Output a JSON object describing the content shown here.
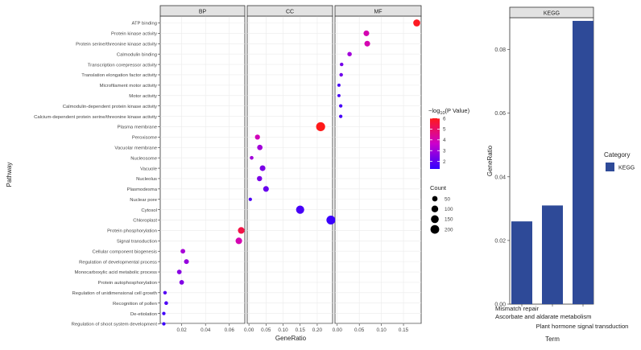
{
  "left_chart": {
    "y_label": "Pathway",
    "x_label": "GeneRatio",
    "colorbar_title_prefix": "−log",
    "colorbar_title_sub": "10",
    "colorbar_title_suffix": "(P Value)",
    "size_legend_title": "Count"
  },
  "right_chart": {
    "y_label": "GeneRatio",
    "x_label": "Term",
    "strip": "KEGG",
    "legend_title": "Category",
    "legend_item": "KEGG"
  },
  "chart_data": [
    {
      "type": "scatter",
      "xlabel": "GeneRatio",
      "ylabel": "Pathway",
      "facets": [
        "BP",
        "CC",
        "MF"
      ],
      "pathways": [
        "ATP binding",
        "Protein kinase activity",
        "Protein serine/threonine kinase activity",
        "Calmodulin binding",
        "Transcription corepressor activity",
        "Translation elongation factor activity",
        "Microfilament motor activity",
        "Motor activity",
        "Calmodulin-dependent protein kinase activity",
        "Calcium-dependent protein serine/threonine kinase activity",
        "Plasma membrane",
        "Peroxisome",
        "Vacuolar membrane",
        "Nucleosome",
        "Vacuole",
        "Nucleolus",
        "Plasmodesma",
        "Nuclear pore",
        "Cytosol",
        "Chloroplast",
        "Protein phosphorylation",
        "Signal transduction",
        "Cellular component biogenesis",
        "Regulation of developmental process",
        "Monocarboxylic acid metabolic process",
        "Protein autophosphorylation",
        "Regulation of unidimensional cell growth",
        "Recognition of pollen",
        "De-etiolation",
        "Regulation of shoot system development"
      ],
      "panels": {
        "BP": {
          "xlim": [
            0.002,
            0.073
          ],
          "ticks": [
            0.02,
            0.04,
            0.06
          ],
          "tick_labels": [
            "0.02",
            "0.04",
            "0.06"
          ]
        },
        "CC": {
          "xlim": [
            -0.005,
            0.245
          ],
          "ticks": [
            0.0,
            0.05,
            0.1,
            0.15,
            0.2
          ],
          "tick_labels": [
            "0.00",
            "0.05",
            "0.10",
            "0.15",
            "0.20"
          ]
        },
        "MF": {
          "xlim": [
            -0.005,
            0.19
          ],
          "ticks": [
            0.0,
            0.05,
            0.1,
            0.15
          ],
          "tick_labels": [
            "0.00",
            "0.05",
            "0.10",
            "0.15"
          ]
        }
      },
      "points": [
        {
          "facet": "MF",
          "pathway": "ATP binding",
          "x": 0.18,
          "count": 110,
          "neg_log10_p": 5.9
        },
        {
          "facet": "MF",
          "pathway": "Protein kinase activity",
          "x": 0.066,
          "count": 60,
          "neg_log10_p": 4.0
        },
        {
          "facet": "MF",
          "pathway": "Protein serine/threonine kinase activity",
          "x": 0.068,
          "count": 60,
          "neg_log10_p": 4.0
        },
        {
          "facet": "MF",
          "pathway": "Calmodulin binding",
          "x": 0.028,
          "count": 25,
          "neg_log10_p": 3.0
        },
        {
          "facet": "MF",
          "pathway": "Transcription corepressor activity",
          "x": 0.01,
          "count": 10,
          "neg_log10_p": 2.3
        },
        {
          "facet": "MF",
          "pathway": "Translation elongation factor activity",
          "x": 0.009,
          "count": 10,
          "neg_log10_p": 2.2
        },
        {
          "facet": "MF",
          "pathway": "Microfilament motor activity",
          "x": 0.004,
          "count": 5,
          "neg_log10_p": 1.6
        },
        {
          "facet": "MF",
          "pathway": "Motor activity",
          "x": 0.004,
          "count": 5,
          "neg_log10_p": 1.6
        },
        {
          "facet": "MF",
          "pathway": "Calmodulin-dependent protein kinase activity",
          "x": 0.008,
          "count": 8,
          "neg_log10_p": 1.6
        },
        {
          "facet": "MF",
          "pathway": "Calcium-dependent protein serine/threonine kinase activity",
          "x": 0.008,
          "count": 8,
          "neg_log10_p": 1.6
        },
        {
          "facet": "CC",
          "pathway": "Plasma membrane",
          "x": 0.21,
          "count": 220,
          "neg_log10_p": 6.0
        },
        {
          "facet": "CC",
          "pathway": "Peroxisome",
          "x": 0.025,
          "count": 40,
          "neg_log10_p": 3.9
        },
        {
          "facet": "CC",
          "pathway": "Vacuolar membrane",
          "x": 0.032,
          "count": 50,
          "neg_log10_p": 3.0
        },
        {
          "facet": "CC",
          "pathway": "Nucleosome",
          "x": 0.008,
          "count": 12,
          "neg_log10_p": 3.0
        },
        {
          "facet": "CC",
          "pathway": "Vacuole",
          "x": 0.04,
          "count": 60,
          "neg_log10_p": 2.4
        },
        {
          "facet": "CC",
          "pathway": "Nucleolus",
          "x": 0.031,
          "count": 45,
          "neg_log10_p": 2.4
        },
        {
          "facet": "CC",
          "pathway": "Plasmodesma",
          "x": 0.05,
          "count": 60,
          "neg_log10_p": 2.1
        },
        {
          "facet": "CC",
          "pathway": "Nuclear pore",
          "x": 0.004,
          "count": 8,
          "neg_log10_p": 1.7
        },
        {
          "facet": "CC",
          "pathway": "Cytosol",
          "x": 0.15,
          "count": 170,
          "neg_log10_p": 1.6
        },
        {
          "facet": "CC",
          "pathway": "Chloroplast",
          "x": 0.24,
          "count": 210,
          "neg_log10_p": 1.4
        },
        {
          "facet": "BP",
          "pathway": "Protein phosphorylation",
          "x": 0.07,
          "count": 95,
          "neg_log10_p": 5.4
        },
        {
          "facet": "BP",
          "pathway": "Signal transduction",
          "x": 0.068,
          "count": 90,
          "neg_log10_p": 4.0
        },
        {
          "facet": "BP",
          "pathway": "Cellular component biogenesis",
          "x": 0.021,
          "count": 30,
          "neg_log10_p": 3.1
        },
        {
          "facet": "BP",
          "pathway": "Regulation of developmental process",
          "x": 0.024,
          "count": 35,
          "neg_log10_p": 2.8
        },
        {
          "facet": "BP",
          "pathway": "Monocarboxylic acid metabolic process",
          "x": 0.018,
          "count": 30,
          "neg_log10_p": 2.6
        },
        {
          "facet": "BP",
          "pathway": "Protein autophosphorylation",
          "x": 0.02,
          "count": 30,
          "neg_log10_p": 2.5
        },
        {
          "facet": "BP",
          "pathway": "Regulation of unidimensional cell growth",
          "x": 0.006,
          "count": 10,
          "neg_log10_p": 1.8
        },
        {
          "facet": "BP",
          "pathway": "Recognition of pollen",
          "x": 0.007,
          "count": 12,
          "neg_log10_p": 1.7
        },
        {
          "facet": "BP",
          "pathway": "De-etiolation",
          "x": 0.005,
          "count": 8,
          "neg_log10_p": 1.5
        },
        {
          "facet": "BP",
          "pathway": "Regulation of shoot system development",
          "x": 0.005,
          "count": 8,
          "neg_log10_p": 1.4
        }
      ],
      "color_scale": {
        "min": 1.3,
        "max": 6.0,
        "low": "#3300ff",
        "mid": "#cc00cc",
        "high": "#ff1a1a",
        "ticks": [
          2,
          3,
          4,
          5,
          6
        ]
      },
      "size_legend": {
        "values": [
          50,
          100,
          150,
          200
        ]
      },
      "grid": true,
      "legend_position": "right"
    },
    {
      "type": "bar",
      "categories": [
        "Mismatch repair",
        "Ascorbate and aldarate metabolism",
        "Plant hormone signal transduction"
      ],
      "values": [
        0.026,
        0.031,
        0.089
      ],
      "xlabel": "Term",
      "ylabel": "GeneRatio",
      "ylim": [
        0,
        0.09
      ],
      "yticks": [
        0.0,
        0.02,
        0.04,
        0.06,
        0.08
      ],
      "ytick_labels": [
        "0.00",
        "0.02",
        "0.04",
        "0.06",
        "0.08"
      ],
      "bar_color": "#2e4a98",
      "legend_title": "Category",
      "legend_entries": [
        "KEGG"
      ],
      "facet": "KEGG",
      "grid": false,
      "legend_position": "right"
    }
  ]
}
